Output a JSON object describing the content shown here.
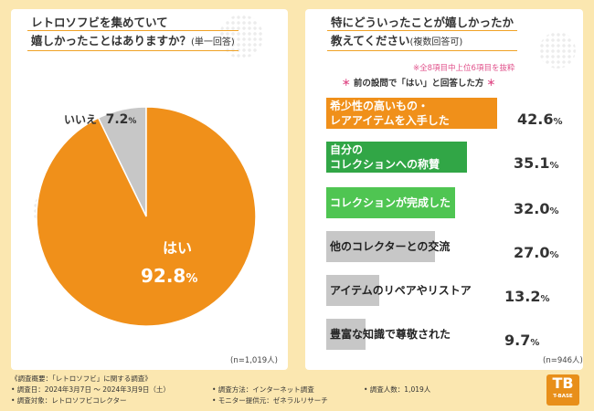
{
  "colors": {
    "background": "#fbe7b0",
    "accent_orange": "#f0901a",
    "gray": "#c7c7c7",
    "green_dark": "#31a646",
    "green_light": "#4fc552",
    "pink": "#e0508a",
    "white": "#ffffff"
  },
  "left": {
    "title_line1": "レトロソフビを集めていて",
    "title_line2": "嬉しかったことはありますか？",
    "title_sub": "(単一回答)",
    "n_label": "(n=1,019人)"
  },
  "right": {
    "title_line1": "特にどういったことが嬉しかったか",
    "title_line2": "教えてください",
    "title_sub": "(複数回答可)",
    "note1": "※全8項目中上位6項目を抜粋",
    "note2_ast_left": "＊",
    "note2_text": "前の設問で「はい」と回答した方",
    "note2_ast_right": "＊",
    "n_label": "(n=946人)"
  },
  "chart_data": [
    {
      "type": "pie",
      "title": "レトロソフビを集めていて嬉しかったことはありますか？(単一回答)",
      "slices": [
        {
          "label": "はい",
          "value": 92.8,
          "display": "92.8",
          "unit": "%",
          "color": "#f0901a"
        },
        {
          "label": "いいえ",
          "value": 7.2,
          "display": "7.2",
          "unit": "%",
          "color": "#c7c7c7"
        }
      ]
    },
    {
      "type": "bar",
      "orientation": "horizontal",
      "title": "特にどういったことが嬉しかったか教えてください(複数回答可)",
      "xlim": [
        0,
        50
      ],
      "bars": [
        {
          "label_lines": [
            "希少性の高いもの・",
            "レアアイテムを入手した"
          ],
          "value": 42.6,
          "display": "42.6",
          "unit": "%",
          "color": "#f0901a",
          "text_color": "#ffffff"
        },
        {
          "label_lines": [
            "自分の",
            "コレクションへの称賛"
          ],
          "value": 35.1,
          "display": "35.1",
          "unit": "%",
          "color": "#31a646",
          "text_color": "#ffffff"
        },
        {
          "label_lines": [
            "コレクションが完成した"
          ],
          "value": 32.0,
          "display": "32.0",
          "unit": "%",
          "color": "#4fc552",
          "text_color": "#ffffff"
        },
        {
          "label_lines": [
            "他のコレクターとの交流"
          ],
          "value": 27.0,
          "display": "27.0",
          "unit": "%",
          "color": "#c7c7c7",
          "text_color": "#222222"
        },
        {
          "label_lines": [
            "アイテムのリペアやリストア"
          ],
          "value": 13.2,
          "display": "13.2",
          "unit": "%",
          "color": "#c7c7c7",
          "text_color": "#222222"
        },
        {
          "label_lines": [
            "豊富な知識で尊敬された"
          ],
          "value": 9.7,
          "display": "9.7",
          "unit": "%",
          "color": "#c7c7c7",
          "text_color": "#222222"
        }
      ]
    }
  ],
  "footer": {
    "overview": "《調査概要：「レトロソフビ」に関する調査》",
    "date": "• 調査日：2024年3月7日 〜 2024年3月9日（土）",
    "method": "• 調査方法：インターネット調査",
    "count": "• 調査人数：1,019人",
    "target": "• 調査対象：レトロソフビコレクター",
    "provider": "• モニター提供元：ゼネラルリサーチ"
  },
  "logo": {
    "mark": "TB",
    "text": "T-BASE"
  }
}
